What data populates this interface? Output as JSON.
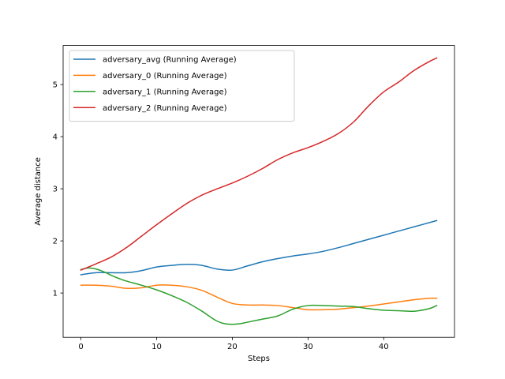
{
  "chart_data": {
    "type": "line",
    "xlabel": "Steps",
    "ylabel": "Average distance",
    "xlim": [
      -2.35,
      49.35
    ],
    "ylim": [
      0.15,
      5.75
    ],
    "xticks": [
      0,
      10,
      20,
      30,
      40
    ],
    "yticks": [
      1,
      2,
      3,
      4,
      5
    ],
    "grid": false,
    "legend_position": "top-left",
    "series": [
      {
        "name": "adversary_avg (Running Average)",
        "color": "#1f77b4",
        "x": [
          0,
          2,
          4,
          6,
          8,
          10,
          12,
          14,
          16,
          18,
          20,
          22,
          24,
          26,
          28,
          30,
          32,
          34,
          36,
          38,
          40,
          42,
          44,
          46,
          47
        ],
        "y": [
          1.35,
          1.39,
          1.39,
          1.39,
          1.43,
          1.5,
          1.53,
          1.55,
          1.53,
          1.46,
          1.44,
          1.52,
          1.6,
          1.66,
          1.71,
          1.75,
          1.8,
          1.87,
          1.95,
          2.03,
          2.11,
          2.19,
          2.27,
          2.35,
          2.39
        ]
      },
      {
        "name": "adversary_0 (Running Average)",
        "color": "#ff7f0e",
        "x": [
          0,
          2,
          4,
          6,
          8,
          10,
          12,
          14,
          16,
          18,
          20,
          22,
          24,
          26,
          28,
          30,
          32,
          34,
          36,
          38,
          40,
          42,
          44,
          46,
          47
        ],
        "y": [
          1.15,
          1.15,
          1.13,
          1.09,
          1.1,
          1.15,
          1.15,
          1.12,
          1.05,
          0.92,
          0.8,
          0.77,
          0.77,
          0.76,
          0.72,
          0.68,
          0.68,
          0.69,
          0.72,
          0.75,
          0.79,
          0.83,
          0.87,
          0.9,
          0.9
        ]
      },
      {
        "name": "adversary_1 (Running Average)",
        "color": "#2ca02c",
        "x": [
          0,
          1,
          2,
          3,
          4,
          5,
          6,
          8,
          10,
          12,
          14,
          16,
          17,
          18,
          19,
          20,
          21,
          22,
          24,
          26,
          28,
          30,
          32,
          34,
          36,
          38,
          40,
          42,
          44,
          46,
          47
        ],
        "y": [
          1.45,
          1.48,
          1.46,
          1.41,
          1.34,
          1.28,
          1.23,
          1.15,
          1.06,
          0.95,
          0.82,
          0.65,
          0.55,
          0.46,
          0.41,
          0.4,
          0.41,
          0.44,
          0.5,
          0.56,
          0.69,
          0.76,
          0.76,
          0.75,
          0.74,
          0.7,
          0.67,
          0.66,
          0.65,
          0.7,
          0.76
        ]
      },
      {
        "name": "adversary_2 (Running Average)",
        "color": "#d62728",
        "x": [
          0,
          2,
          4,
          6,
          8,
          10,
          12,
          14,
          16,
          18,
          20,
          22,
          24,
          26,
          28,
          30,
          32,
          34,
          36,
          38,
          40,
          42,
          44,
          46,
          47
        ],
        "y": [
          1.44,
          1.56,
          1.69,
          1.87,
          2.09,
          2.31,
          2.52,
          2.72,
          2.88,
          3.0,
          3.11,
          3.24,
          3.39,
          3.56,
          3.69,
          3.79,
          3.91,
          4.06,
          4.28,
          4.59,
          4.86,
          5.05,
          5.27,
          5.44,
          5.51
        ]
      }
    ]
  }
}
